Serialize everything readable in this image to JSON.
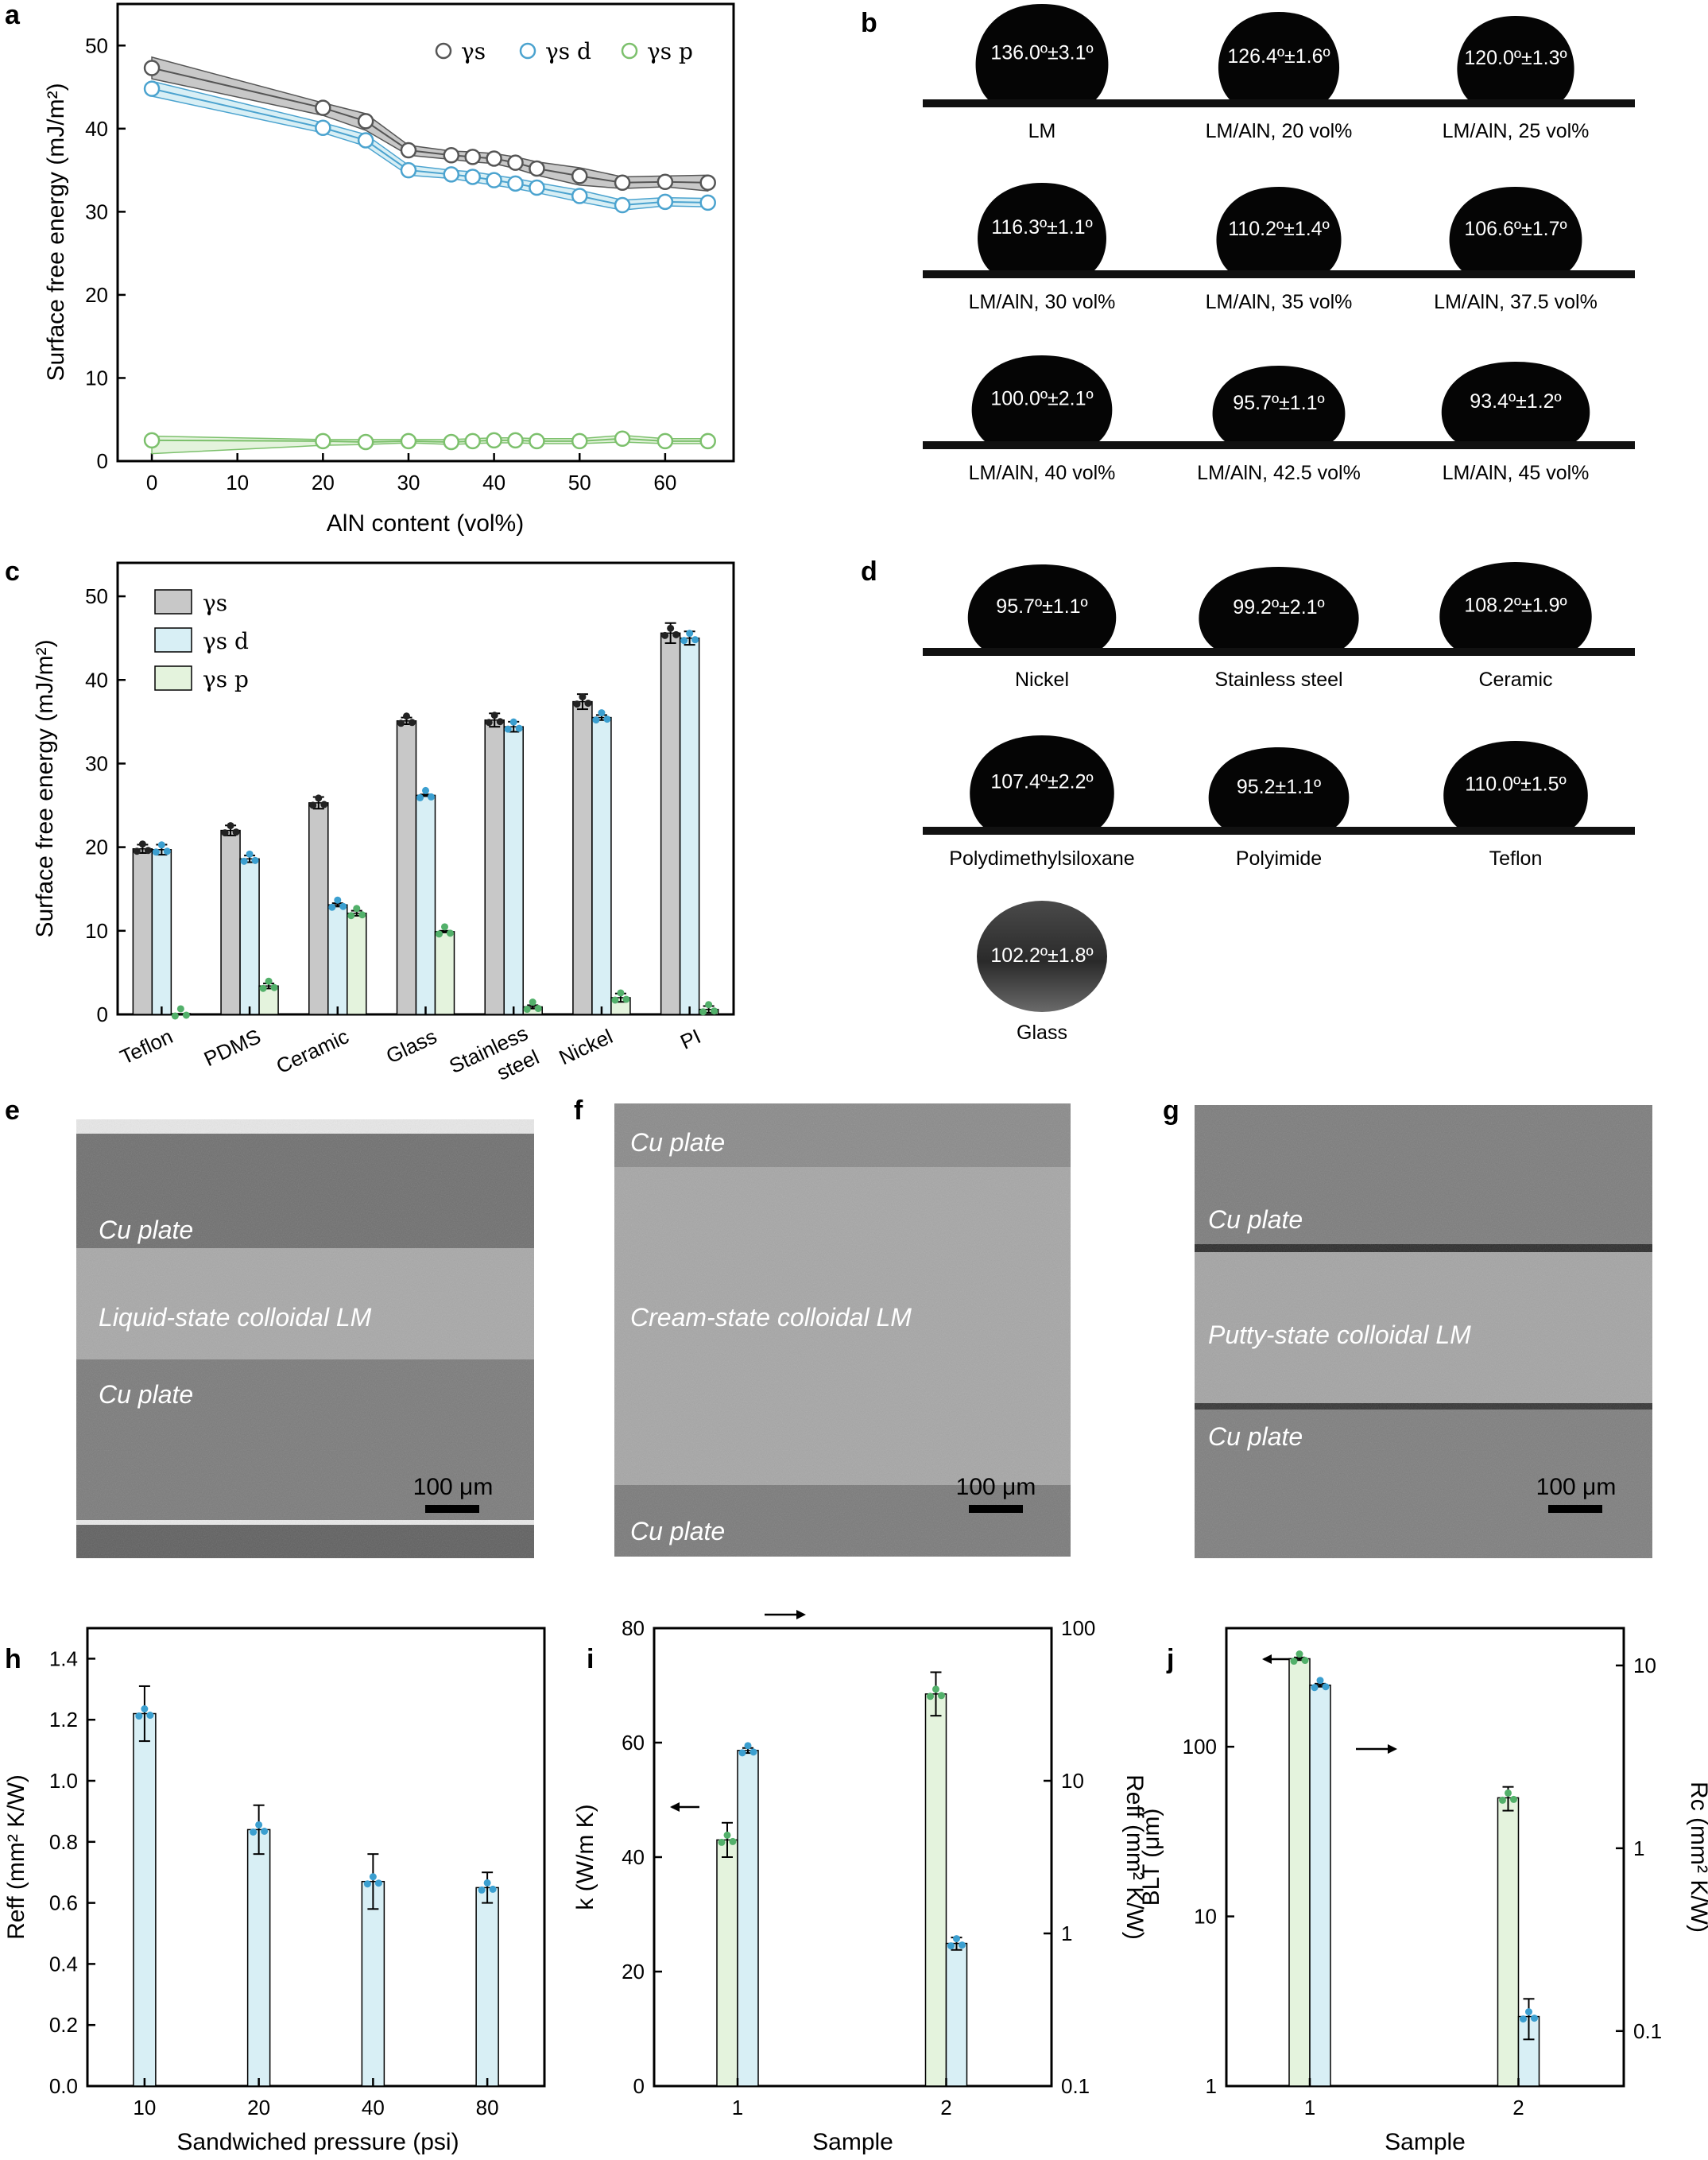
{
  "panel_labels": [
    "a",
    "b",
    "c",
    "d",
    "e",
    "f",
    "g",
    "h",
    "i",
    "j"
  ],
  "colors": {
    "gray": "#c8c8c8",
    "gray_line": "#555555",
    "blue_fill": "#d8eff5",
    "blue_line": "#4ba3cf",
    "green_fill": "#e4f3dd",
    "green_line": "#7cc06c",
    "dot_black": "#222222",
    "dot_blue": "#3b9fd0",
    "dot_green": "#52b06a"
  },
  "chart_data": [
    {
      "id": "a",
      "type": "line",
      "xlabel": "AlN content (vol%)",
      "ylabel": "Surface free energy (mJ/m²)",
      "xlim": [
        -4,
        68
      ],
      "ylim": [
        0,
        55
      ],
      "xticks": [
        0,
        10,
        20,
        30,
        40,
        50,
        60
      ],
      "yticks": [
        0,
        10,
        20,
        30,
        40,
        50
      ],
      "legend_position": "top-right",
      "x": [
        0,
        20,
        25,
        30,
        35,
        37.5,
        40,
        42.5,
        45,
        50,
        55,
        60,
        65
      ],
      "series": [
        {
          "name": "γs",
          "color": "#555555",
          "values": [
            47.3,
            42.5,
            40.9,
            37.4,
            36.8,
            36.6,
            36.4,
            35.9,
            35.2,
            34.3,
            33.5,
            33.6,
            33.5
          ],
          "band_upper": [
            48.6,
            43.1,
            41.8,
            38.0,
            37.3,
            37.2,
            37.0,
            36.6,
            36.0,
            35.3,
            34.2,
            34.3,
            34.4
          ],
          "band_lower": [
            46.0,
            41.6,
            39.8,
            36.8,
            36.3,
            36.0,
            35.8,
            35.2,
            34.4,
            33.2,
            32.8,
            33.0,
            32.5
          ]
        },
        {
          "name": "γs d",
          "color": "#4ba3cf",
          "values": [
            44.8,
            40.1,
            38.6,
            35.0,
            34.5,
            34.2,
            33.8,
            33.4,
            32.9,
            31.9,
            30.8,
            31.2,
            31.1
          ],
          "band_upper": [
            45.7,
            40.7,
            39.3,
            35.6,
            35.0,
            34.8,
            34.4,
            34.0,
            33.5,
            32.6,
            31.4,
            31.7,
            31.6
          ],
          "band_lower": [
            43.9,
            39.5,
            37.9,
            34.4,
            34.0,
            33.6,
            33.2,
            32.8,
            32.3,
            31.2,
            30.2,
            30.7,
            30.6
          ]
        },
        {
          "name": "γs p",
          "color": "#7cc06c",
          "values": [
            2.5,
            2.4,
            2.3,
            2.4,
            2.3,
            2.4,
            2.5,
            2.5,
            2.4,
            2.4,
            2.7,
            2.4,
            2.4
          ],
          "band_upper": [
            3.0,
            2.6,
            2.6,
            2.6,
            2.6,
            2.7,
            2.8,
            2.8,
            2.7,
            2.7,
            3.1,
            2.7,
            2.7
          ],
          "band_lower": [
            0.9,
            1.9,
            2.0,
            2.2,
            2.0,
            2.1,
            2.2,
            2.2,
            2.1,
            2.1,
            2.3,
            2.1,
            2.1
          ]
        }
      ]
    },
    {
      "id": "c",
      "type": "bar",
      "xlabel": "",
      "ylabel": "Surface free energy (mJ/m²)",
      "ylim": [
        0,
        54
      ],
      "yticks": [
        0,
        10,
        20,
        30,
        40,
        50
      ],
      "legend_position": "top-left",
      "categories": [
        "Teflon",
        "PDMS",
        "Ceramic",
        "Glass",
        "Stainless steel",
        "Nickel",
        "PI"
      ],
      "series": [
        {
          "name": "γs",
          "values": [
            19.8,
            22.0,
            25.3,
            35.1,
            35.2,
            37.4,
            45.6
          ],
          "errors": [
            0.5,
            0.6,
            0.7,
            0.4,
            0.8,
            0.9,
            1.2
          ]
        },
        {
          "name": "γs d",
          "values": [
            19.7,
            18.6,
            13.1,
            26.2,
            34.4,
            35.5,
            45.0
          ],
          "errors": [
            0.6,
            0.4,
            0.2,
            0.1,
            0.6,
            0.3,
            0.8
          ]
        },
        {
          "name": "γs p",
          "values": [
            0.1,
            3.4,
            12.1,
            9.9,
            0.9,
            2.0,
            0.6
          ],
          "errors": [
            0.0,
            0.3,
            0.3,
            0.1,
            0.2,
            0.5,
            0.4
          ]
        }
      ]
    },
    {
      "id": "h",
      "type": "bar",
      "xlabel": "Sandwiched pressure (psi)",
      "ylabel": "Reff (mm² K/W)",
      "ylim": [
        0,
        1.5
      ],
      "yticks": [
        0.0,
        0.2,
        0.4,
        0.6,
        0.8,
        1.0,
        1.2,
        1.4
      ],
      "categories": [
        "10",
        "20",
        "40",
        "80"
      ],
      "values": [
        1.22,
        0.84,
        0.67,
        0.65
      ],
      "errors": [
        0.09,
        0.08,
        0.09,
        0.05
      ]
    },
    {
      "id": "i",
      "type": "bar",
      "xlabel": "Sample",
      "ylabel": "k (W/m K)",
      "ylabel_right": "Reff (mm² K/W)",
      "ylim": [
        0,
        80
      ],
      "yticks": [
        0,
        20,
        40,
        60,
        80
      ],
      "ylim_right": [
        0.1,
        100
      ],
      "yticks_right": [
        "0.1",
        "1",
        "10",
        "100"
      ],
      "right_axis_scale": "log",
      "categories": [
        "1",
        "2"
      ],
      "series": [
        {
          "name": "k",
          "axis": "left",
          "values": [
            43.0,
            68.5
          ],
          "errors": [
            3.0,
            3.8
          ]
        },
        {
          "name": "Reff",
          "axis": "right",
          "values": [
            15.8,
            0.86
          ],
          "errors": [
            0.6,
            0.08
          ]
        }
      ]
    },
    {
      "id": "j",
      "type": "bar",
      "xlabel": "Sample",
      "ylabel": "BLT (μm)",
      "ylabel_right": "Rc (mm² K/W)",
      "ylim": [
        1,
        500
      ],
      "yticks": [
        "1",
        "10",
        "100"
      ],
      "left_axis_scale": "log",
      "ylim_right": [
        0.05,
        16
      ],
      "yticks_right": [
        "0.1",
        "1",
        "10"
      ],
      "right_axis_scale": "log",
      "categories": [
        "1",
        "2"
      ],
      "series": [
        {
          "name": "BLT",
          "axis": "left",
          "values": [
            330,
            50
          ],
          "errors": [
            6,
            8
          ]
        },
        {
          "name": "Rc",
          "axis": "right",
          "values": [
            7.8,
            0.12
          ],
          "errors": [
            0.15,
            0.03
          ]
        }
      ]
    }
  ],
  "droplets_b": [
    {
      "angle": "136.0º±3.1º",
      "caption": "LM"
    },
    {
      "angle": "126.4º±1.6º",
      "caption": "LM/AlN, 20 vol%"
    },
    {
      "angle": "120.0º±1.3º",
      "caption": "LM/AlN, 25 vol%"
    },
    {
      "angle": "116.3º±1.1º",
      "caption": "LM/AlN, 30 vol%"
    },
    {
      "angle": "110.2º±1.4º",
      "caption": "LM/AlN, 35 vol%"
    },
    {
      "angle": "106.6º±1.7º",
      "caption": "LM/AlN, 37.5 vol%"
    },
    {
      "angle": "100.0º±2.1º",
      "caption": "LM/AlN, 40 vol%"
    },
    {
      "angle": "95.7º±1.1º",
      "caption": "LM/AlN, 42.5 vol%"
    },
    {
      "angle": "93.4º±1.2º",
      "caption": "LM/AlN, 45 vol%"
    }
  ],
  "droplets_d": [
    {
      "angle": "95.7º±1.1º",
      "caption": "Nickel"
    },
    {
      "angle": "99.2º±2.1º",
      "caption": "Stainless steel"
    },
    {
      "angle": "108.2º±1.9º",
      "caption": "Ceramic"
    },
    {
      "angle": "107.4º±2.2º",
      "caption": "Polydimethylsiloxane"
    },
    {
      "angle": "95.2±1.1º",
      "caption": "Polyimide"
    },
    {
      "angle": "110.0º±1.5º",
      "caption": "Teflon"
    },
    {
      "angle": "102.2º±1.8º",
      "caption": "Glass"
    }
  ],
  "sem": [
    {
      "id": "e",
      "labels": [
        "Cu plate",
        "Liquid-state colloidal LM",
        "Cu plate"
      ],
      "scalebar": "100 μm"
    },
    {
      "id": "f",
      "labels": [
        "Cu plate",
        "Cream-state colloidal LM",
        "Cu plate"
      ],
      "scalebar": "100 μm"
    },
    {
      "id": "g",
      "labels": [
        "Cu plate",
        "Putty-state colloidal LM",
        "Cu plate"
      ],
      "scalebar": "100 μm"
    }
  ]
}
